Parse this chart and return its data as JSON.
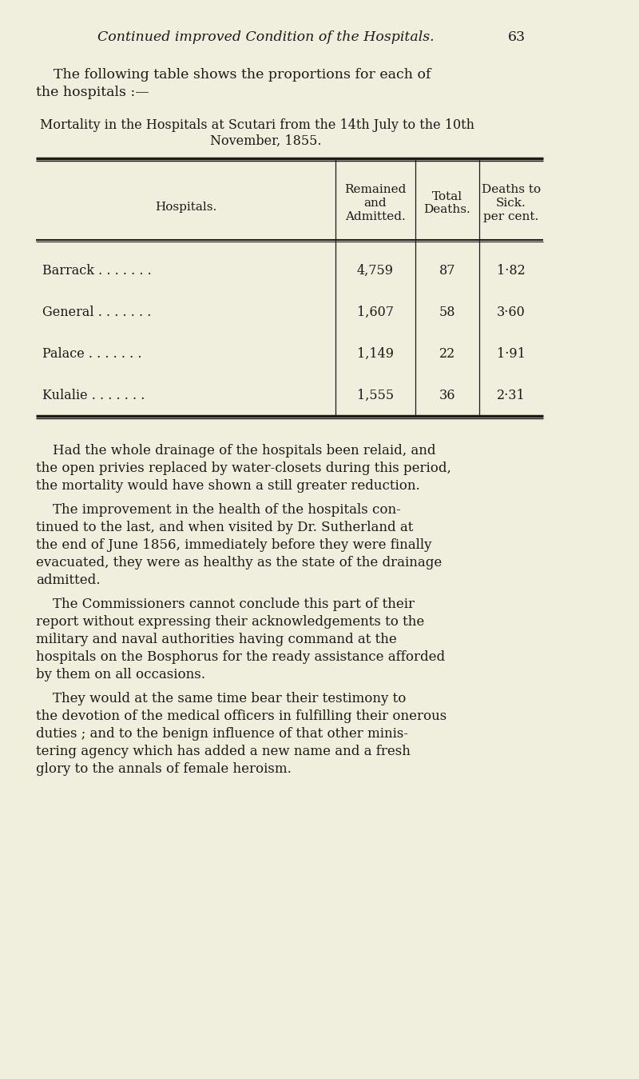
{
  "bg_color": "#f0eedc",
  "text_color": "#1c1a18",
  "line_color": "#1c1a18",
  "header_italic": "Continued improved Condition of the Hospitals.",
  "header_page_num": "63",
  "header_fontsize": 12.5,
  "intro_line1": "    The following table shows the proportions for each of",
  "intro_line2": "the hospitals :—",
  "intro_fontsize": 12.5,
  "table_title_line1": "Mortality in the Hospitals at Scutari from the 14th July to the 10th",
  "table_title_line2": "November, 1855.",
  "table_title_fontsize": 11.5,
  "col_headers": [
    "Hospitals.",
    "Remained\nand\nAdmitted.",
    "Total\nDeaths.",
    "Deaths to\nSick.\nper cent."
  ],
  "col_header_fontsize": 11.0,
  "rows": [
    [
      "Barrack . . . . . . .",
      "4,759",
      "87",
      "1·82"
    ],
    [
      "General . . . . . . .",
      "1,607",
      "58",
      "3·60"
    ],
    [
      "Palace . . . . . . .",
      "1,149",
      "22",
      "1·91"
    ],
    [
      "Kulalie . . . . . . .",
      "1,555",
      "36",
      "2·31"
    ]
  ],
  "row_fontsize": 11.5,
  "body_paragraphs": [
    "    Had the whole drainage of the hospitals been relaid, and\nthe open privies replaced by water-closets during this period,\nthe mortality would have shown a still greater reduction.",
    "    The improvement in the health of the hospitals con-\ntinued to the last, and when visited by Dr. Sutherland at\nthe end of June 1856, immediately before they were finally\nevacuated, they were as healthy as the state of the drainage\nadmitted.",
    "    The Commissioners cannot conclude this part of their\nreport without expressing their acknowledgements to the\nmilitary and naval authorities having command at the\nhospitals on the Bosphorus for the ready assistance afforded\nby them on all occasions.",
    "    They would at the same time bear their testimony to\nthe devotion of the medical officers in fulfilling their onerous\nduties ; and to the benign influence of that other minis-\ntering agency which has added a new name and a fresh\nglory to the annals of female heroism."
  ],
  "body_fontsize": 12.0
}
